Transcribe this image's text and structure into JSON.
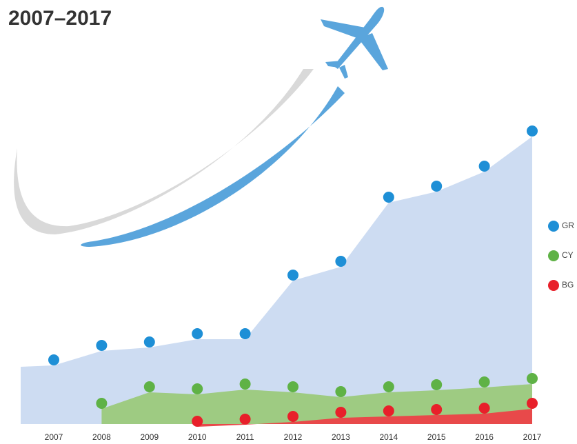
{
  "chart_data": {
    "type": "area",
    "title": "2007–2017",
    "categories": [
      "2007",
      "2008",
      "2009",
      "2010",
      "2011",
      "2012",
      "2013",
      "2014",
      "2015",
      "2016",
      "2017"
    ],
    "series": [
      {
        "name": "GR",
        "color": "#1e8fd6",
        "area_color": "#cddcf2",
        "values": [
          93,
          114,
          119,
          131,
          131,
          216,
          236,
          329,
          345,
          374,
          425
        ]
      },
      {
        "name": "CY",
        "color": "#5fb246",
        "area_color": "#9ecb82",
        "values": [
          null,
          30,
          54,
          51,
          58,
          54,
          47,
          54,
          57,
          61,
          66
        ]
      },
      {
        "name": "BG",
        "color": "#e8202a",
        "area_color": "#e8494a",
        "values": [
          null,
          null,
          null,
          4,
          7,
          11,
          17,
          19,
          21,
          23,
          30
        ]
      }
    ],
    "legend": "right"
  }
}
